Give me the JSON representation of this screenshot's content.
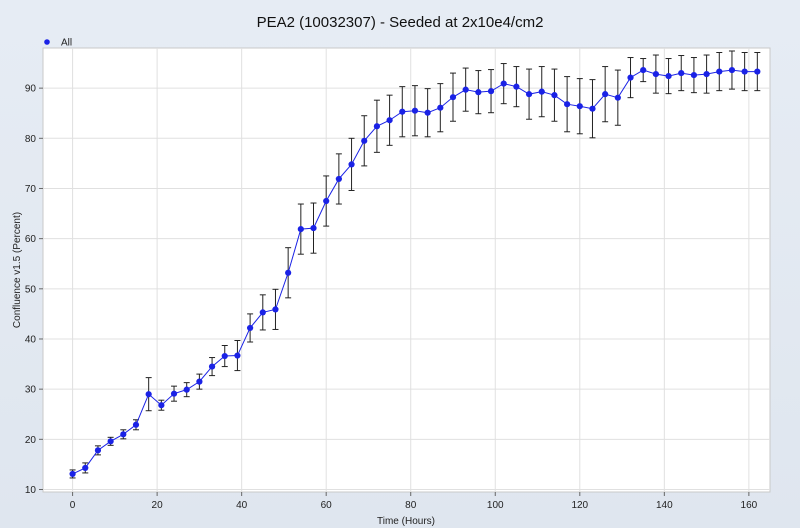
{
  "colors": {
    "background": "#e3e9f1",
    "plot_area": "#ffffff",
    "grid": "#e0e0e0",
    "series": "#1a22e6",
    "errorbar": "#222222"
  },
  "chart_data": {
    "type": "line",
    "title": "PEA2 (10032307) - Seeded at 2x10e4/cm2",
    "xlabel": "Time (Hours)",
    "ylabel": "Confluence v1.5 (Percent)",
    "xlim": [
      -7,
      165
    ],
    "ylim": [
      9.5,
      98
    ],
    "xticks": [
      0,
      20,
      40,
      60,
      80,
      100,
      120,
      140,
      160
    ],
    "yticks": [
      10,
      20,
      30,
      40,
      50,
      60,
      70,
      80,
      90
    ],
    "grid": true,
    "legend": {
      "position": "top-left",
      "entries": [
        "All"
      ]
    },
    "series": [
      {
        "name": "All",
        "x": [
          0,
          3,
          6,
          9,
          12,
          15,
          18,
          21,
          24,
          27,
          30,
          33,
          36,
          39,
          42,
          45,
          48,
          51,
          54,
          57,
          60,
          63,
          66,
          69,
          72,
          75,
          78,
          81,
          84,
          87,
          90,
          93,
          96,
          99,
          102,
          105,
          108,
          111,
          114,
          117,
          120,
          123,
          126,
          129,
          132,
          135,
          138,
          141,
          144,
          147,
          150,
          153,
          156,
          159,
          162
        ],
        "y": [
          13.1,
          14.3,
          17.8,
          19.6,
          21.0,
          22.9,
          29.0,
          26.8,
          29.1,
          29.9,
          31.5,
          34.5,
          36.6,
          36.7,
          42.2,
          45.3,
          45.9,
          53.2,
          61.9,
          62.1,
          67.5,
          71.9,
          74.8,
          79.5,
          82.4,
          83.6,
          85.3,
          85.5,
          85.1,
          86.1,
          88.2,
          89.7,
          89.2,
          89.4,
          90.9,
          90.3,
          88.8,
          89.3,
          88.6,
          86.8,
          86.4,
          85.9,
          88.8,
          88.1,
          92.1,
          93.6,
          92.8,
          92.4,
          93.0,
          92.6,
          92.8,
          93.3,
          93.6,
          93.3,
          93.3
        ],
        "err": [
          0.8,
          1.0,
          0.9,
          0.8,
          0.9,
          1.0,
          3.3,
          1.0,
          1.5,
          1.4,
          1.5,
          1.8,
          2.1,
          3.0,
          2.8,
          3.5,
          4.0,
          5.0,
          5.0,
          5.0,
          5.0,
          5.0,
          5.2,
          5.0,
          5.2,
          5.0,
          5.0,
          5.0,
          4.8,
          4.8,
          4.8,
          4.3,
          4.3,
          4.3,
          4.0,
          4.0,
          5.0,
          5.0,
          5.2,
          5.5,
          5.5,
          5.8,
          5.5,
          5.5,
          4.0,
          2.3,
          3.8,
          3.5,
          3.5,
          3.5,
          3.8,
          3.8,
          3.8,
          3.8,
          3.8
        ]
      }
    ]
  }
}
